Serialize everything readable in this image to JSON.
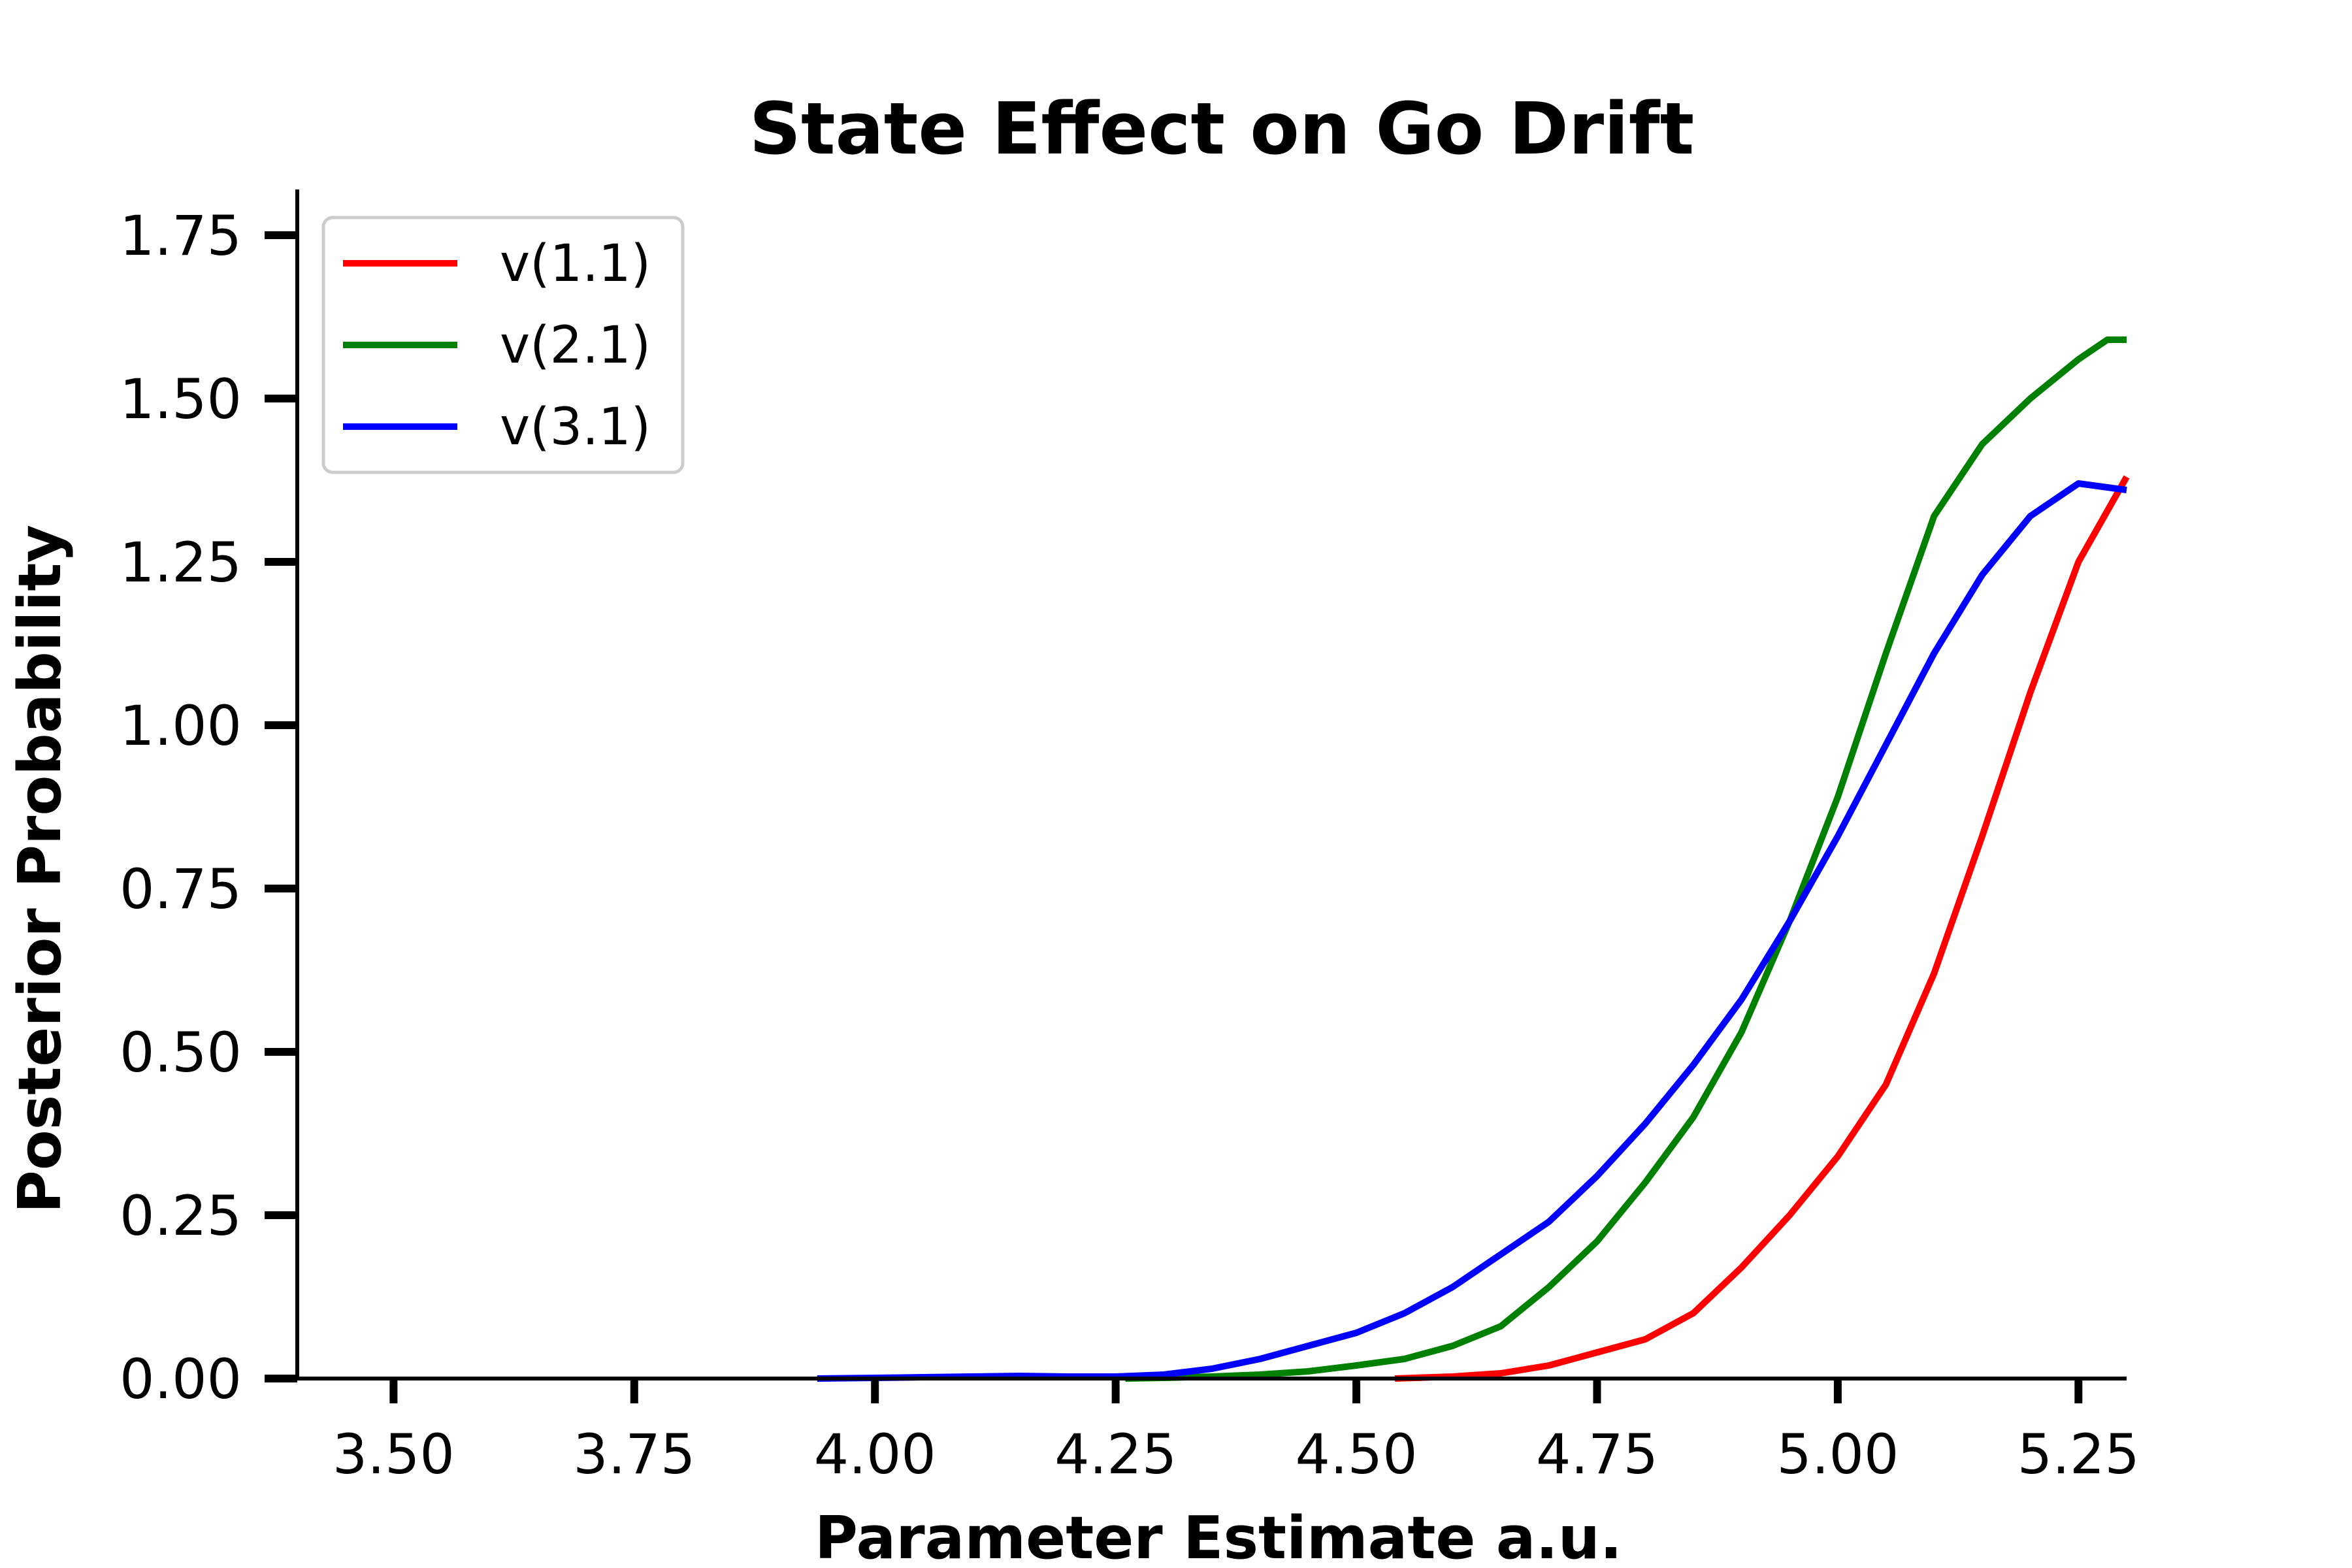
{
  "chart_data": {
    "type": "line",
    "title": "State Effect on Go Drift",
    "xlabel": "Parameter Estimate a.u.",
    "ylabel": "Posterior Probability",
    "xlim": [
      3.4,
      5.3
    ],
    "ylim": [
      0,
      1.82
    ],
    "xticks": [
      3.5,
      3.75,
      4.0,
      4.25,
      4.5,
      4.75,
      5.0,
      5.25
    ],
    "xtick_labels": [
      "3.50",
      "3.75",
      "4.00",
      "4.25",
      "4.50",
      "4.75",
      "5.00",
      "5.25"
    ],
    "yticks": [
      0.0,
      0.25,
      0.5,
      0.75,
      1.0,
      1.25,
      1.5,
      1.75
    ],
    "ytick_labels": [
      "0.00",
      "0.25",
      "0.50",
      "0.75",
      "1.00",
      "1.25",
      "1.50",
      "1.75"
    ],
    "grid": false,
    "legend_position": "top-left",
    "series": [
      {
        "name": "v(1.1)",
        "color": "#ff0000",
        "x": [
          4.54,
          4.6,
          4.65,
          4.7,
          4.75,
          4.8,
          4.85,
          4.9,
          4.95,
          5.0,
          5.05,
          5.1,
          5.15,
          5.2,
          5.25,
          5.3
        ],
        "y": [
          0.0,
          0.003,
          0.008,
          0.02,
          0.04,
          0.06,
          0.1,
          0.17,
          0.25,
          0.34,
          0.45,
          0.62,
          0.83,
          1.05,
          1.25,
          1.38
        ]
      },
      {
        "name": "v(2.1)",
        "color": "#008000",
        "x": [
          4.26,
          4.3,
          4.35,
          4.4,
          4.45,
          4.5,
          4.55,
          4.6,
          4.65,
          4.7,
          4.75,
          4.8,
          4.85,
          4.9,
          4.95,
          5.0,
          5.05,
          5.1,
          5.15,
          5.2,
          5.25,
          5.28,
          5.3
        ],
        "y": [
          0.0,
          0.001,
          0.003,
          0.006,
          0.011,
          0.02,
          0.03,
          0.05,
          0.08,
          0.14,
          0.21,
          0.3,
          0.4,
          0.53,
          0.7,
          0.89,
          1.11,
          1.32,
          1.43,
          1.5,
          1.56,
          1.59,
          1.59
        ]
      },
      {
        "name": "v(3.1)",
        "color": "#0000ff",
        "x": [
          3.94,
          4.0,
          4.05,
          4.1,
          4.15,
          4.2,
          4.25,
          4.3,
          4.35,
          4.4,
          4.45,
          4.5,
          4.55,
          4.6,
          4.65,
          4.7,
          4.75,
          4.8,
          4.85,
          4.9,
          4.95,
          5.0,
          5.05,
          5.1,
          5.15,
          5.2,
          5.25,
          5.3
        ],
        "y": [
          0.0,
          0.001,
          0.002,
          0.003,
          0.004,
          0.003,
          0.003,
          0.006,
          0.015,
          0.03,
          0.05,
          0.07,
          0.1,
          0.14,
          0.19,
          0.24,
          0.31,
          0.39,
          0.48,
          0.58,
          0.7,
          0.83,
          0.97,
          1.11,
          1.23,
          1.32,
          1.37,
          1.36
        ]
      }
    ]
  }
}
